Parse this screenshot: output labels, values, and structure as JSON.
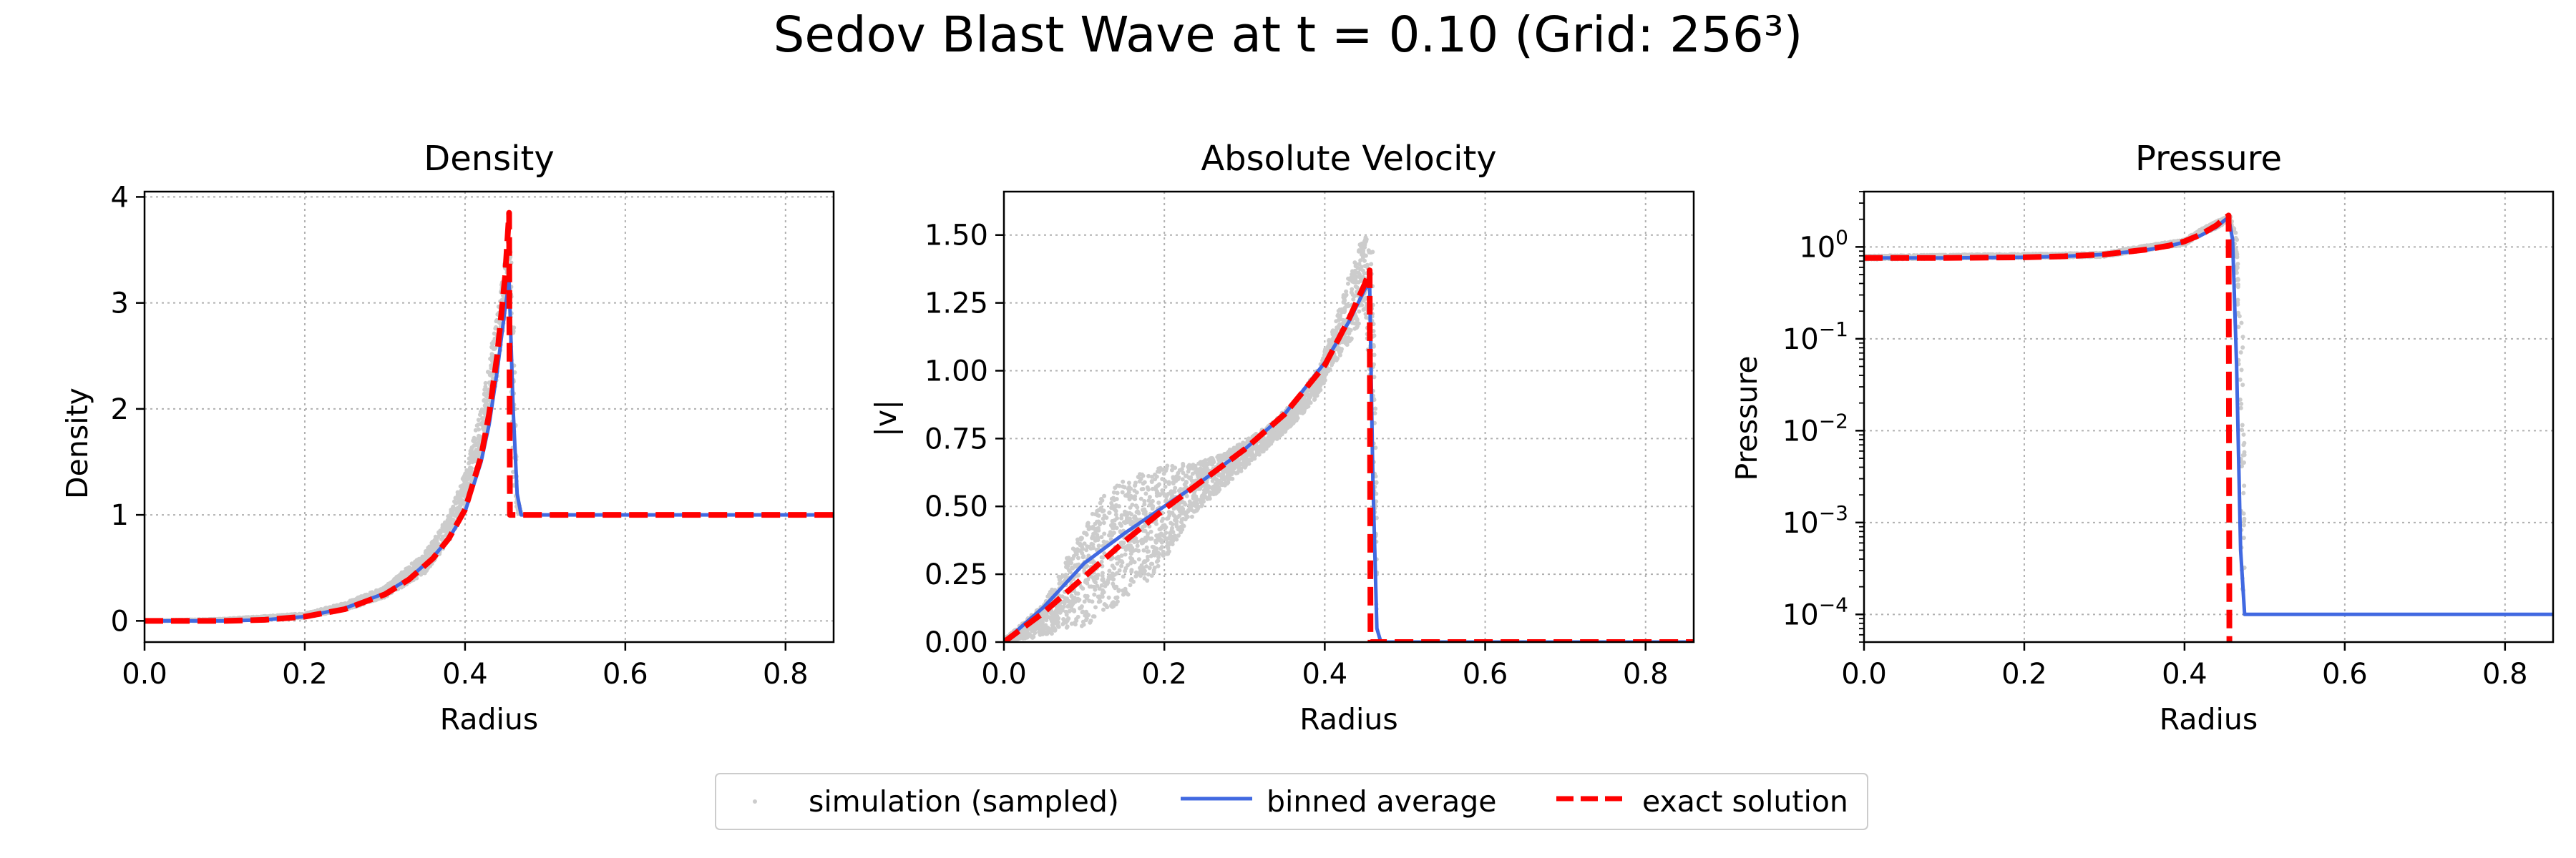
{
  "figure": {
    "suptitle": "Sedov Blast Wave at t = 0.10 (Grid: 256³)"
  },
  "colors": {
    "simulation": "#cccccc",
    "binned": "#4169e1",
    "exact": "#ff0000",
    "grid": "#b0b0b0"
  },
  "legend": {
    "placement": "bottom-center",
    "entries": [
      "simulation (sampled)",
      "binned average",
      "exact solution"
    ]
  },
  "chart_data": [
    {
      "type": "line",
      "title": "Density",
      "xlabel": "Radius",
      "ylabel": "Density",
      "xlim": [
        0.0,
        0.86
      ],
      "ylim": [
        -0.2,
        4.05
      ],
      "xticks": [
        0.0,
        0.2,
        0.4,
        0.6,
        0.8
      ],
      "xtick_labels": [
        "0.0",
        "0.2",
        "0.4",
        "0.6",
        "0.8"
      ],
      "yticks": [
        0,
        1,
        2,
        3,
        4
      ],
      "ytick_labels": [
        "0",
        "1",
        "2",
        "3",
        "4"
      ],
      "yscale": "linear",
      "grid": true,
      "series": [
        {
          "name": "simulation (sampled)",
          "kind": "scatter-band",
          "band": [
            [
              0.0,
              0,
              0
            ],
            [
              0.1,
              0,
              0.02
            ],
            [
              0.2,
              0.03,
              0.07
            ],
            [
              0.25,
              0.1,
              0.17
            ],
            [
              0.3,
              0.22,
              0.32
            ],
            [
              0.35,
              0.45,
              0.65
            ],
            [
              0.38,
              0.75,
              1.0
            ],
            [
              0.4,
              1.05,
              1.4
            ],
            [
              0.42,
              1.55,
              2.0
            ],
            [
              0.44,
              2.3,
              2.9
            ],
            [
              0.45,
              2.9,
              3.4
            ],
            [
              0.455,
              3.3,
              3.75
            ],
            [
              0.46,
              1.2,
              3.2
            ],
            [
              0.465,
              1.0,
              1.2
            ],
            [
              0.47,
              1.0,
              1.03
            ]
          ]
        },
        {
          "name": "binned average",
          "x": [
            0.0,
            0.1,
            0.15,
            0.2,
            0.25,
            0.3,
            0.33,
            0.36,
            0.38,
            0.4,
            0.42,
            0.43,
            0.44,
            0.45,
            0.455,
            0.46,
            0.465,
            0.47,
            0.48,
            0.6,
            0.86
          ],
          "y": [
            0.0,
            0.0,
            0.01,
            0.04,
            0.12,
            0.26,
            0.4,
            0.6,
            0.78,
            1.03,
            1.5,
            1.85,
            2.35,
            2.95,
            3.2,
            2.0,
            1.2,
            1.0,
            1.0,
            1.0,
            1.0
          ]
        },
        {
          "name": "exact solution",
          "x": [
            0.0,
            0.1,
            0.15,
            0.2,
            0.25,
            0.3,
            0.33,
            0.36,
            0.38,
            0.4,
            0.42,
            0.43,
            0.44,
            0.45,
            0.455,
            0.456,
            0.86
          ],
          "y": [
            0.0,
            0.0,
            0.01,
            0.04,
            0.11,
            0.25,
            0.39,
            0.59,
            0.78,
            1.05,
            1.55,
            1.95,
            2.5,
            3.25,
            3.85,
            1.0,
            1.0
          ]
        }
      ]
    },
    {
      "type": "line",
      "title": "Absolute Velocity",
      "xlabel": "Radius",
      "ylabel": "|v|",
      "xlim": [
        0.0,
        0.86
      ],
      "ylim": [
        0.0,
        1.66
      ],
      "xticks": [
        0.0,
        0.2,
        0.4,
        0.6,
        0.8
      ],
      "xtick_labels": [
        "0.0",
        "0.2",
        "0.4",
        "0.6",
        "0.8"
      ],
      "yticks": [
        0.0,
        0.25,
        0.5,
        0.75,
        1.0,
        1.25,
        1.5
      ],
      "ytick_labels": [
        "0.00",
        "0.25",
        "0.50",
        "0.75",
        "1.00",
        "1.25",
        "1.50"
      ],
      "yscale": "linear",
      "grid": true,
      "series": [
        {
          "name": "simulation (sampled)",
          "kind": "scatter-band",
          "band": [
            [
              0.0,
              0,
              0.01
            ],
            [
              0.05,
              0.02,
              0.14
            ],
            [
              0.08,
              0.05,
              0.32
            ],
            [
              0.1,
              0.05,
              0.42
            ],
            [
              0.12,
              0.1,
              0.53
            ],
            [
              0.15,
              0.15,
              0.6
            ],
            [
              0.18,
              0.22,
              0.63
            ],
            [
              0.2,
              0.3,
              0.65
            ],
            [
              0.22,
              0.4,
              0.66
            ],
            [
              0.24,
              0.48,
              0.66
            ],
            [
              0.27,
              0.56,
              0.69
            ],
            [
              0.3,
              0.64,
              0.74
            ],
            [
              0.33,
              0.72,
              0.8
            ],
            [
              0.36,
              0.8,
              0.88
            ],
            [
              0.39,
              0.9,
              1.0
            ],
            [
              0.41,
              1.02,
              1.15
            ],
            [
              0.43,
              1.1,
              1.35
            ],
            [
              0.44,
              1.15,
              1.45
            ],
            [
              0.45,
              1.2,
              1.5
            ],
            [
              0.46,
              0.8,
              1.45
            ],
            [
              0.465,
              0.0,
              0.5
            ]
          ]
        },
        {
          "name": "binned average",
          "x": [
            0.0,
            0.05,
            0.1,
            0.15,
            0.2,
            0.25,
            0.3,
            0.35,
            0.4,
            0.43,
            0.45,
            0.456,
            0.46,
            0.465,
            0.47,
            0.86
          ],
          "y": [
            0.0,
            0.13,
            0.29,
            0.4,
            0.5,
            0.6,
            0.71,
            0.84,
            1.03,
            1.18,
            1.3,
            1.32,
            0.6,
            0.05,
            0.0,
            0.0
          ]
        },
        {
          "name": "exact solution",
          "x": [
            0.0,
            0.05,
            0.1,
            0.15,
            0.2,
            0.25,
            0.3,
            0.35,
            0.4,
            0.43,
            0.45,
            0.456,
            0.457,
            0.86
          ],
          "y": [
            0.0,
            0.11,
            0.24,
            0.37,
            0.49,
            0.6,
            0.71,
            0.84,
            1.02,
            1.19,
            1.32,
            1.37,
            0.0,
            0.0
          ]
        }
      ]
    },
    {
      "type": "line",
      "title": "Pressure",
      "xlabel": "Radius",
      "ylabel": "Pressure",
      "xlim": [
        0.0,
        0.86
      ],
      "ylim": [
        5e-05,
        4.0
      ],
      "xticks": [
        0.0,
        0.2,
        0.4,
        0.6,
        0.8
      ],
      "xtick_labels": [
        "0.0",
        "0.2",
        "0.4",
        "0.6",
        "0.8"
      ],
      "yticks": [
        0.0001,
        0.001,
        0.01,
        0.1,
        1
      ],
      "ytick_labels": [
        {
          "base": "10",
          "exp": "−4"
        },
        {
          "base": "10",
          "exp": "−3"
        },
        {
          "base": "10",
          "exp": "−2"
        },
        {
          "base": "10",
          "exp": "−1"
        },
        {
          "base": "10",
          "exp": "0"
        }
      ],
      "yscale": "log",
      "grid": true,
      "series": [
        {
          "name": "simulation (sampled)",
          "kind": "scatter-band",
          "band": [
            [
              0.0,
              0.73,
              0.8
            ],
            [
              0.3,
              0.78,
              0.86
            ],
            [
              0.4,
              1.05,
              1.2
            ],
            [
              0.44,
              1.6,
              1.9
            ],
            [
              0.455,
              1.9,
              2.2
            ],
            [
              0.462,
              0.5,
              2.0
            ],
            [
              0.468,
              0.0003,
              0.6
            ],
            [
              0.475,
              0.0001,
              0.0003
            ]
          ]
        },
        {
          "name": "binned average",
          "x": [
            0.0,
            0.1,
            0.2,
            0.25,
            0.3,
            0.35,
            0.38,
            0.4,
            0.42,
            0.44,
            0.45,
            0.455,
            0.46,
            0.465,
            0.47,
            0.475,
            0.86
          ],
          "y": [
            0.76,
            0.76,
            0.77,
            0.79,
            0.83,
            0.92,
            1.02,
            1.13,
            1.33,
            1.65,
            1.95,
            2.1,
            1.2,
            0.05,
            0.0005,
            0.0001,
            0.0001
          ]
        },
        {
          "name": "exact solution",
          "x": [
            0.0,
            0.1,
            0.2,
            0.25,
            0.3,
            0.35,
            0.38,
            0.4,
            0.42,
            0.44,
            0.45,
            0.455,
            0.456
          ],
          "y": [
            0.76,
            0.76,
            0.77,
            0.79,
            0.83,
            0.93,
            1.03,
            1.15,
            1.36,
            1.72,
            2.05,
            2.2,
            5e-05
          ]
        }
      ]
    }
  ]
}
